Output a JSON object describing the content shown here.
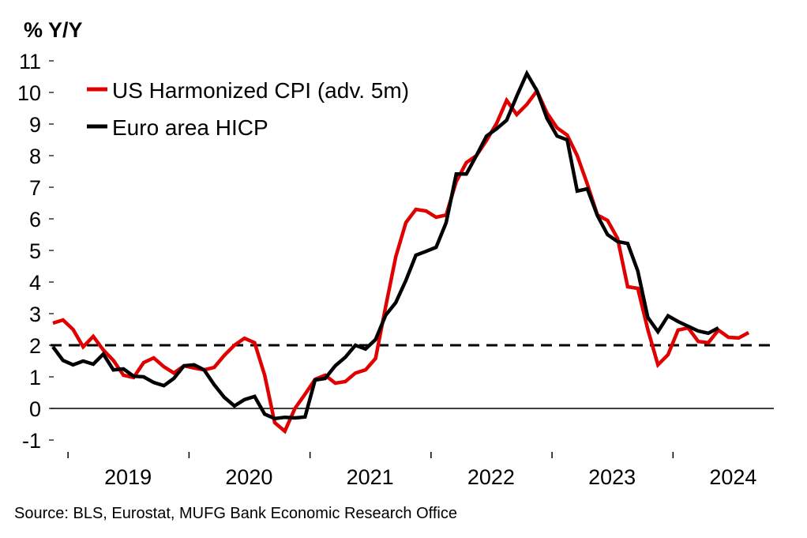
{
  "chart_data": {
    "type": "line",
    "title": "% Y/Y",
    "xlabel": "",
    "ylabel": "% Y/Y",
    "x_unit": "month index starting 2018-11, monthly",
    "x_start": "2018-11",
    "ylim": [
      -1,
      11
    ],
    "yticks": [
      -1,
      0,
      1,
      2,
      3,
      4,
      5,
      6,
      7,
      8,
      9,
      10,
      11
    ],
    "xtick_labels": [
      "2019",
      "2020",
      "2021",
      "2022",
      "2023",
      "2024"
    ],
    "reference_line": {
      "value": 2,
      "style": "dashed"
    },
    "legend_position": "top-left",
    "series": [
      {
        "name": "US Harmonized CPI (adv. 5m)",
        "color": "#e00000",
        "values": [
          2.7,
          2.8,
          2.5,
          1.95,
          2.28,
          1.85,
          1.52,
          1.05,
          0.98,
          1.45,
          1.6,
          1.32,
          1.12,
          1.35,
          1.28,
          1.22,
          1.3,
          1.68,
          2.0,
          2.22,
          2.08,
          1.05,
          -0.45,
          -0.72,
          0.0,
          0.45,
          0.92,
          1.05,
          0.8,
          0.85,
          1.12,
          1.22,
          1.58,
          3.22,
          4.8,
          5.88,
          6.3,
          6.25,
          6.05,
          6.12,
          7.18,
          7.78,
          8.0,
          8.48,
          9.02,
          9.75,
          9.3,
          9.62,
          10.05,
          9.35,
          8.88,
          8.65,
          8.0,
          7.1,
          6.12,
          5.95,
          5.38,
          3.85,
          3.8,
          2.5,
          1.38,
          1.7,
          2.48,
          2.55,
          2.12,
          2.08,
          2.48,
          2.25,
          2.23,
          2.4
        ]
      },
      {
        "name": "Euro area HICP",
        "color": "#000000",
        "values": [
          1.95,
          1.52,
          1.38,
          1.5,
          1.4,
          1.72,
          1.22,
          1.25,
          1.02,
          1.0,
          0.82,
          0.72,
          0.95,
          1.35,
          1.38,
          1.22,
          0.75,
          0.35,
          0.08,
          0.28,
          0.38,
          -0.18,
          -0.32,
          -0.28,
          -0.3,
          -0.27,
          0.9,
          0.95,
          1.35,
          1.62,
          2.0,
          1.88,
          2.18,
          2.95,
          3.35,
          4.05,
          4.85,
          4.97,
          5.1,
          5.88,
          7.42,
          7.42,
          8.0,
          8.62,
          8.85,
          9.12,
          9.88,
          10.6,
          10.05,
          9.18,
          8.62,
          8.5,
          6.88,
          6.95,
          6.1,
          5.5,
          5.28,
          5.22,
          4.35,
          2.88,
          2.43,
          2.93,
          2.75,
          2.6,
          2.45,
          2.38,
          2.55
        ]
      }
    ]
  },
  "source": "Source: BLS, Eurostat, MUFG Bank Economic Research Office"
}
